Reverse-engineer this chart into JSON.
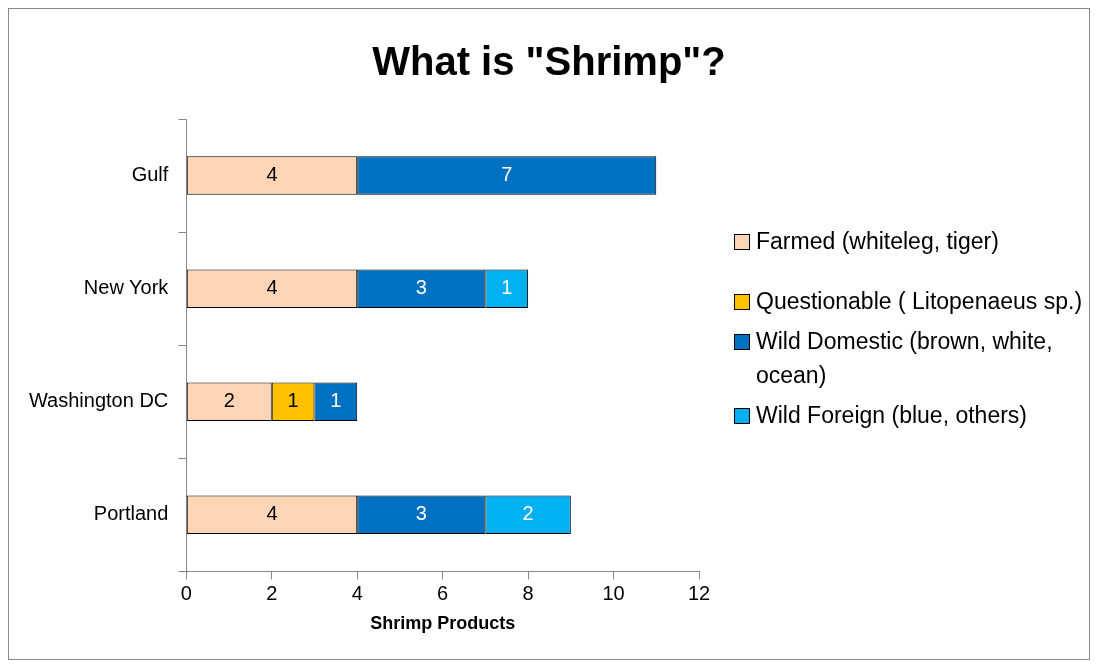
{
  "chart_data": {
    "type": "bar",
    "title": "What is \"Shrimp\"?",
    "xlabel": "Shrimp Products",
    "orientation": "horizontal",
    "stacked": true,
    "categories": [
      "Gulf",
      "New York",
      "Washington DC",
      "Portland"
    ],
    "series": [
      {
        "name": "Farmed (whiteleg, tiger)",
        "color": "#fbd5b5",
        "values": [
          4,
          4,
          2,
          4
        ]
      },
      {
        "name": "Questionable ( Litopenaeus sp.)",
        "color": "#ffc000",
        "values": [
          null,
          null,
          1,
          null
        ]
      },
      {
        "name": "Wild Domestic (brown, white, ocean)",
        "color": "#0070c0",
        "values": [
          7,
          3,
          1,
          3
        ]
      },
      {
        "name": "Wild Foreign (blue, others)",
        "color": "#00b0f0",
        "values": [
          null,
          1,
          null,
          2
        ]
      }
    ],
    "xlim": [
      0,
      12
    ],
    "xticks": [
      0,
      2,
      4,
      6,
      8,
      10,
      12
    ],
    "grid": false,
    "legend": "right",
    "data_labels": true
  }
}
